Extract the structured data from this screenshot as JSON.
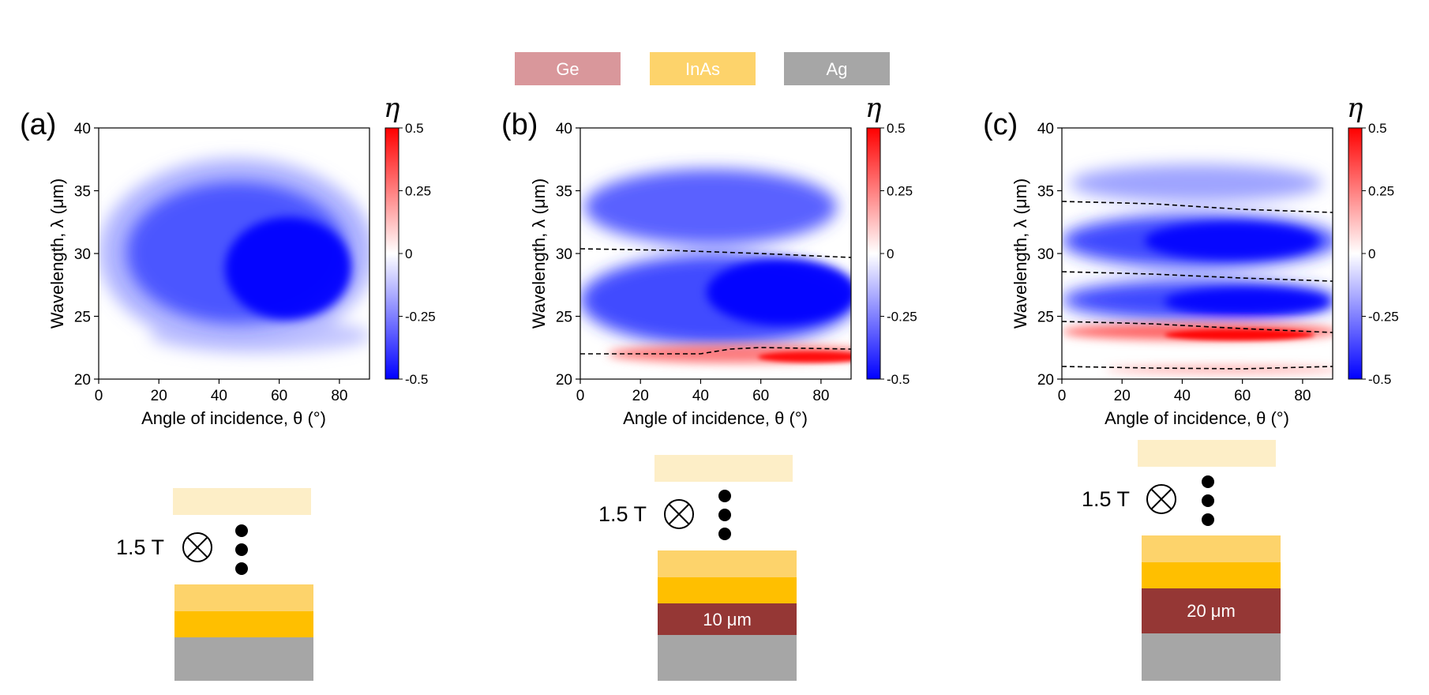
{
  "legend": [
    {
      "label": "Ge",
      "color": "#d9979b"
    },
    {
      "label": "InAs",
      "color": "#fdd36b"
    },
    {
      "label": "Ag",
      "color": "#a6a6a6"
    }
  ],
  "colorbar": {
    "label": "η",
    "ticks": [
      "0.5",
      "0.25",
      "0",
      "-0.25",
      "-0.5"
    ],
    "min": -0.5,
    "max": 0.5,
    "colors": {
      "negative": "#0000ff",
      "zero": "#ffffff",
      "positive": "#ff0000"
    }
  },
  "chart_data": [
    {
      "type": "heatmap",
      "panel": "(a)",
      "xlabel": "Angle of incidence, θ (°)",
      "ylabel": "Wavelength, λ (μm)",
      "xlim": [
        0,
        90
      ],
      "ylim": [
        20,
        40
      ],
      "xticks": [
        "0",
        "20",
        "40",
        "60",
        "80"
      ],
      "yticks": [
        "20",
        "25",
        "30",
        "35",
        "40"
      ],
      "regions": [
        {
          "theta_range": [
            0,
            90
          ],
          "lambda_range": [
            23,
            37
          ],
          "eta_min": -0.5,
          "note": "broad negative band, strongest near θ≈60°, λ≈28 μm"
        },
        {
          "theta_range": [
            10,
            90
          ],
          "lambda_range": [
            21,
            24
          ],
          "eta_min": -0.15,
          "note": "weak negative tail"
        }
      ],
      "structure": {
        "field": "1.5 T",
        "layers": [
          "InAs (light)",
          "InAs",
          "Ag"
        ]
      }
    },
    {
      "type": "heatmap",
      "panel": "(b)",
      "xlabel": "Angle of incidence, θ (°)",
      "ylabel": "Wavelength, λ (μm)",
      "xlim": [
        0,
        90
      ],
      "ylim": [
        20,
        40
      ],
      "xticks": [
        "0",
        "20",
        "40",
        "60",
        "80"
      ],
      "yticks": [
        "20",
        "25",
        "30",
        "35",
        "40"
      ],
      "dashed_lines": [
        {
          "theta": [
            0,
            30,
            60,
            90
          ],
          "lambda": [
            30.3,
            30.1,
            29.8,
            29.5
          ]
        },
        {
          "theta": [
            0,
            40,
            50,
            60,
            90
          ],
          "lambda": [
            21.9,
            21.9,
            22.3,
            22.4,
            22.3
          ]
        }
      ],
      "regions": [
        {
          "theta_range": [
            5,
            85
          ],
          "lambda_range": [
            30.5,
            37
          ],
          "eta_min": -0.4
        },
        {
          "theta_range": [
            5,
            90
          ],
          "lambda_range": [
            22.8,
            29.7
          ],
          "eta_min": -0.5
        },
        {
          "theta_range": [
            0,
            90
          ],
          "lambda_range": [
            20.5,
            22.3
          ],
          "eta_max": 0.5,
          "note": "positive band strongest at large θ"
        }
      ],
      "structure": {
        "field": "1.5 T",
        "layers": [
          "InAs (light)",
          "InAs",
          "Ge",
          "Ag"
        ],
        "spacer": "10 μm"
      }
    },
    {
      "type": "heatmap",
      "panel": "(c)",
      "xlabel": "Angle of incidence, θ (°)",
      "ylabel": "Wavelength, λ (μm)",
      "xlim": [
        0,
        90
      ],
      "ylim": [
        20,
        40
      ],
      "xticks": [
        "0",
        "20",
        "40",
        "60",
        "80"
      ],
      "yticks": [
        "20",
        "25",
        "30",
        "35",
        "40"
      ],
      "dashed_lines": [
        {
          "theta": [
            0,
            30,
            60,
            90
          ],
          "lambda": [
            34.1,
            33.9,
            33.5,
            33.2
          ]
        },
        {
          "theta": [
            0,
            30,
            60,
            90
          ],
          "lambda": [
            28.6,
            28.4,
            28.1,
            27.8
          ]
        },
        {
          "theta": [
            0,
            30,
            60,
            90
          ],
          "lambda": [
            24.6,
            24.4,
            24.0,
            23.7
          ]
        },
        {
          "theta": [
            0,
            30,
            60,
            90
          ],
          "lambda": [
            21.0,
            20.9,
            20.8,
            21.0
          ]
        }
      ],
      "regions": [
        {
          "theta_range": [
            5,
            85
          ],
          "lambda_range": [
            34.3,
            38
          ],
          "eta_min": -0.3
        },
        {
          "theta_range": [
            5,
            90
          ],
          "lambda_range": [
            28.8,
            33.8
          ],
          "eta_min": -0.5
        },
        {
          "theta_range": [
            5,
            90
          ],
          "lambda_range": [
            24.6,
            28.0
          ],
          "eta_min": -0.5
        },
        {
          "theta_range": [
            0,
            90
          ],
          "lambda_range": [
            22.5,
            24.5
          ],
          "eta_max": 0.5
        },
        {
          "theta_range": [
            0,
            90
          ],
          "lambda_range": [
            20.2,
            21.0
          ],
          "eta_max": 0.3
        }
      ],
      "structure": {
        "field": "1.5 T",
        "layers": [
          "InAs (light)",
          "InAs",
          "Ge",
          "Ag"
        ],
        "spacer": "20 μm"
      }
    }
  ]
}
